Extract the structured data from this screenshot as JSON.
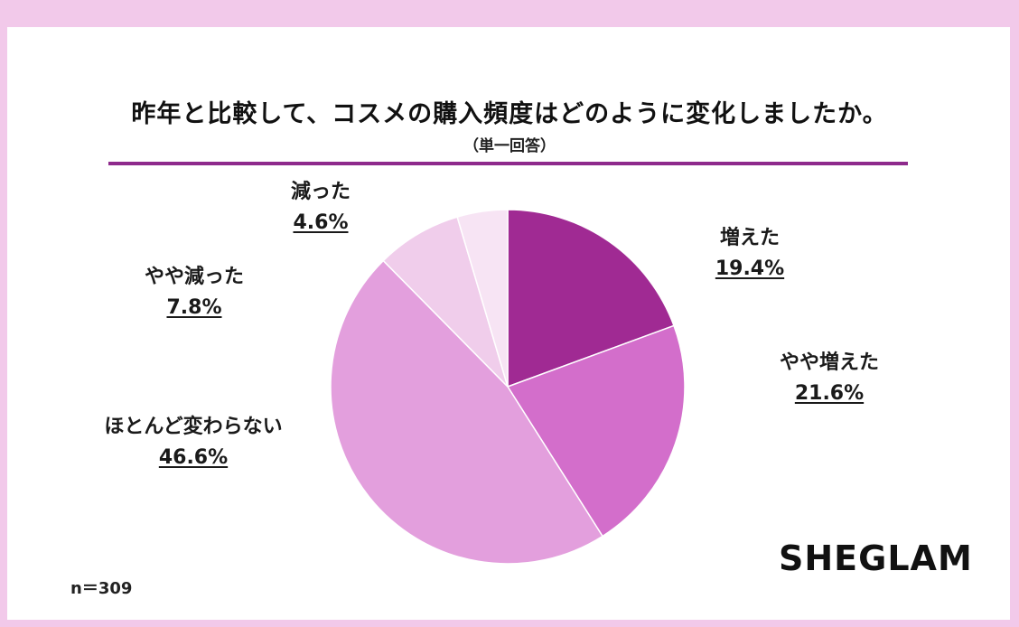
{
  "header": {
    "title": "昨年と比較して、コスメの購入頻度はどのように変化しましたか。",
    "subtitle": "（単一回答）"
  },
  "footer": {
    "n_label": "n＝309",
    "brand": "SHEGLAM"
  },
  "chart_data": {
    "type": "pie",
    "title": "昨年と比較して、コスメの購入頻度はどのように変化しましたか。",
    "subtitle": "（単一回答）",
    "unit": "%",
    "start": "12 o'clock, clockwise",
    "slices": [
      {
        "label": "増えた",
        "value": 19.4,
        "value_label": "19.4%",
        "color": "#a02a93"
      },
      {
        "label": "やや増えた",
        "value": 21.6,
        "value_label": "21.6%",
        "color": "#d36ecb"
      },
      {
        "label": "ほとんど変わらない",
        "value": 46.6,
        "value_label": "46.6%",
        "color": "#e39fdd"
      },
      {
        "label": "やや減った",
        "value": 7.8,
        "value_label": "7.8%",
        "color": "#f0cdeb"
      },
      {
        "label": "減った",
        "value": 4.6,
        "value_label": "4.6%",
        "color": "#f7e4f4"
      }
    ]
  }
}
